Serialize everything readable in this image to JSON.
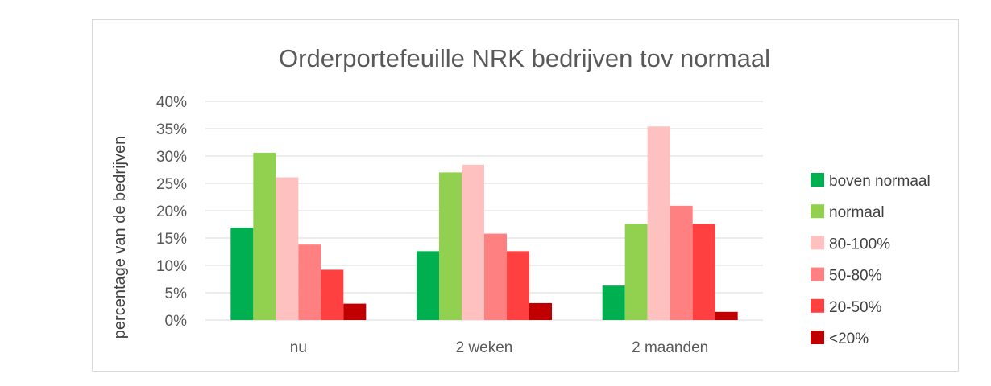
{
  "chart_data": {
    "type": "bar",
    "title": "Orderportefeuille NRK bedrijven tov normaal",
    "ylabel": "percentage van de bedrijven",
    "xlabel": "",
    "categories": [
      "nu",
      "2 weken",
      "2 maanden"
    ],
    "ylim": [
      0,
      40
    ],
    "yticks": [
      "0%",
      "5%",
      "10%",
      "15%",
      "20%",
      "25%",
      "30%",
      "35%",
      "40%"
    ],
    "grid": true,
    "legend_position": "right",
    "series": [
      {
        "name": "boven normaal",
        "color": "#00b050",
        "values": [
          16.9,
          12.6,
          6.3
        ]
      },
      {
        "name": "normaal",
        "color": "#92d050",
        "values": [
          30.6,
          27.0,
          17.6
        ]
      },
      {
        "name": "80-100%",
        "color": "#ffc0c0",
        "values": [
          26.1,
          28.4,
          35.4
        ]
      },
      {
        "name": "50-80%",
        "color": "#ff8080",
        "values": [
          13.8,
          15.8,
          20.9
        ]
      },
      {
        "name": "20-50%",
        "color": "#ff4040",
        "values": [
          9.2,
          12.6,
          17.6
        ]
      },
      {
        "name": "<20%",
        "color": "#c00000",
        "values": [
          3.0,
          3.1,
          1.5
        ]
      }
    ]
  }
}
